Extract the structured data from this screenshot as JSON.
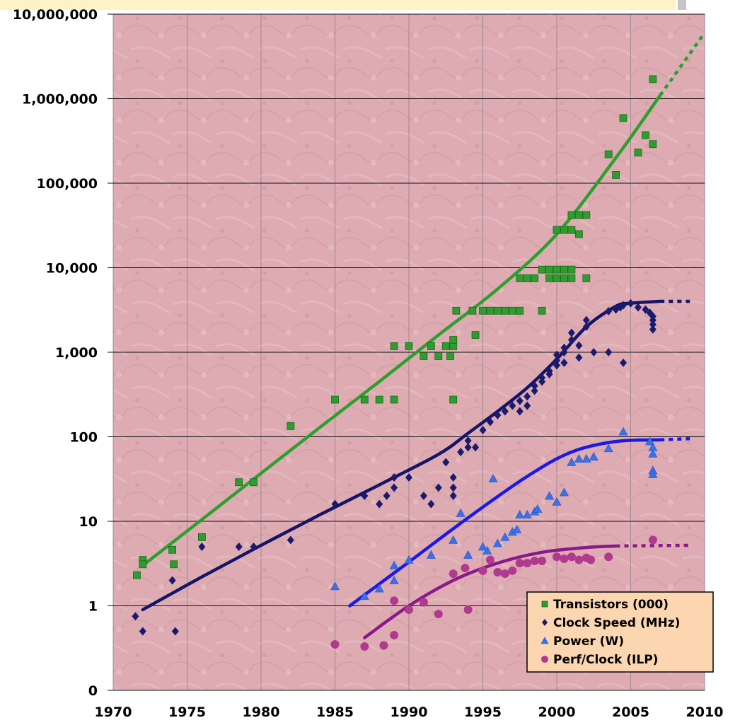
{
  "chart_data": {
    "type": "scatter",
    "title": "",
    "xlabel": "",
    "ylabel": "",
    "yscale": "log",
    "xlim": [
      1970,
      2010
    ],
    "ylim": [
      0.1,
      10000000
    ],
    "x_ticks": [
      1970,
      1975,
      1980,
      1985,
      1990,
      1995,
      2000,
      2005,
      2010
    ],
    "x_tick_labels": [
      "1970",
      "1975",
      "1980",
      "1985",
      "1990",
      "1995",
      "2000",
      "2005",
      "2010"
    ],
    "y_ticks": [
      0.1,
      1,
      10,
      100,
      1000,
      10000,
      100000,
      1000000,
      10000000
    ],
    "y_tick_labels": [
      "0",
      "1",
      "10",
      "100",
      "1,000",
      "10,000",
      "100,000",
      "1,000,000",
      "10,000,000"
    ],
    "grid": true,
    "legend_position": "bottom-right",
    "series": [
      {
        "name": "Transistors (000)",
        "marker": "square",
        "color": "#2e9c2e",
        "line_color": "#2ca02c",
        "points": [
          [
            1971.6,
            2.3
          ],
          [
            1972,
            3.5
          ],
          [
            1972,
            3.1
          ],
          [
            1974,
            4.6
          ],
          [
            1974.1,
            3.1
          ],
          [
            1976,
            6.5
          ],
          [
            1978.5,
            29
          ],
          [
            1979.5,
            29
          ],
          [
            1982,
            134
          ],
          [
            1985,
            275
          ],
          [
            1987,
            275
          ],
          [
            1988,
            275
          ],
          [
            1989,
            275
          ],
          [
            1989,
            1180
          ],
          [
            1990,
            1180
          ],
          [
            1991,
            900
          ],
          [
            1991.5,
            1180
          ],
          [
            1992,
            900
          ],
          [
            1992.5,
            1180
          ],
          [
            1993,
            1180
          ],
          [
            1993,
            1400
          ],
          [
            1992.8,
            900
          ],
          [
            1993,
            275
          ],
          [
            1993.2,
            3100
          ],
          [
            1994.3,
            3100
          ],
          [
            1994.5,
            1600
          ],
          [
            1995,
            3100
          ],
          [
            1995.5,
            3100
          ],
          [
            1996,
            3100
          ],
          [
            1996.5,
            3100
          ],
          [
            1997,
            3100
          ],
          [
            1997.5,
            3100
          ],
          [
            1997.5,
            7500
          ],
          [
            1998,
            7500
          ],
          [
            1998.5,
            7500
          ],
          [
            1999,
            3100
          ],
          [
            1999,
            9500
          ],
          [
            1999.5,
            9500
          ],
          [
            1999.5,
            7500
          ],
          [
            2000,
            9500
          ],
          [
            2000,
            7500
          ],
          [
            2000,
            28000
          ],
          [
            2000.5,
            28000
          ],
          [
            2000.5,
            9500
          ],
          [
            2000.5,
            7500
          ],
          [
            2001,
            9500
          ],
          [
            2001,
            7500
          ],
          [
            2001,
            28000
          ],
          [
            2001,
            42000
          ],
          [
            2001.5,
            42000
          ],
          [
            2001.5,
            25000
          ],
          [
            2002,
            42000
          ],
          [
            2002,
            7500
          ],
          [
            2003.5,
            220000
          ],
          [
            2004,
            125000
          ],
          [
            2004.5,
            590000
          ],
          [
            2005.5,
            230000
          ],
          [
            2006,
            370000
          ],
          [
            2006.5,
            290000
          ],
          [
            2006.5,
            1700000
          ]
        ],
        "trend": [
          [
            1972,
            3
          ],
          [
            1976,
            10.5
          ],
          [
            1980,
            37
          ],
          [
            1984,
            130
          ],
          [
            1988,
            450
          ],
          [
            1992,
            1600
          ],
          [
            1996,
            5600
          ],
          [
            2000,
            25000
          ],
          [
            2004,
            200000
          ],
          [
            2007,
            1100000
          ]
        ],
        "trend_projection": [
          [
            2007,
            1100000
          ],
          [
            2010,
            6000000
          ]
        ]
      },
      {
        "name": "Clock Speed (MHz)",
        "marker": "diamond",
        "color": "#1a1a6e",
        "line_color": "#141468",
        "points": [
          [
            1971.5,
            0.75
          ],
          [
            1972,
            0.5
          ],
          [
            1974,
            2
          ],
          [
            1974.2,
            0.5
          ],
          [
            1976,
            5
          ],
          [
            1978.5,
            5
          ],
          [
            1979.5,
            5
          ],
          [
            1982,
            6
          ],
          [
            1985,
            16
          ],
          [
            1987,
            20
          ],
          [
            1988,
            16
          ],
          [
            1988.5,
            20
          ],
          [
            1989,
            25
          ],
          [
            1989,
            33
          ],
          [
            1990,
            33
          ],
          [
            1991,
            20
          ],
          [
            1991.5,
            16
          ],
          [
            1992,
            25
          ],
          [
            1992.5,
            50
          ],
          [
            1993,
            33
          ],
          [
            1993,
            25
          ],
          [
            1993,
            20
          ],
          [
            1993.5,
            66
          ],
          [
            1994,
            75
          ],
          [
            1994,
            90
          ],
          [
            1994.5,
            75
          ],
          [
            1995,
            120
          ],
          [
            1995.5,
            150
          ],
          [
            1996,
            180
          ],
          [
            1996.5,
            200
          ],
          [
            1997,
            233
          ],
          [
            1997.5,
            266
          ],
          [
            1997.5,
            200
          ],
          [
            1998,
            300
          ],
          [
            1998,
            233
          ],
          [
            1998.5,
            350
          ],
          [
            1998.5,
            400
          ],
          [
            1999,
            450
          ],
          [
            1999,
            500
          ],
          [
            1999.5,
            550
          ],
          [
            1999.5,
            600
          ],
          [
            2000,
            700
          ],
          [
            2000,
            800
          ],
          [
            2000,
            933
          ],
          [
            2000.5,
            1000
          ],
          [
            2000.5,
            1130
          ],
          [
            2000.5,
            750
          ],
          [
            2001,
            1400
          ],
          [
            2001,
            1700
          ],
          [
            2001.5,
            1200
          ],
          [
            2001.5,
            866
          ],
          [
            2002,
            2000
          ],
          [
            2002,
            2400
          ],
          [
            2002.5,
            1000
          ],
          [
            2003.5,
            3060
          ],
          [
            2003.5,
            1000
          ],
          [
            2004,
            3200
          ],
          [
            2004.3,
            3400
          ],
          [
            2004.5,
            3600
          ],
          [
            2004.5,
            750
          ],
          [
            2005,
            3800
          ],
          [
            2005.5,
            3400
          ],
          [
            2006,
            3200
          ],
          [
            2006.3,
            2930
          ],
          [
            2006.5,
            2660
          ],
          [
            2006.5,
            2400
          ],
          [
            2006.5,
            2130
          ],
          [
            2006.5,
            1860
          ]
        ],
        "trend": [
          [
            1972,
            0.9
          ],
          [
            1976,
            2.2
          ],
          [
            1980,
            5.2
          ],
          [
            1984,
            12
          ],
          [
            1988,
            27
          ],
          [
            1992,
            62
          ],
          [
            1994,
            110
          ],
          [
            1996,
            200
          ],
          [
            1998,
            380
          ],
          [
            2000,
            830
          ],
          [
            2002,
            2000
          ],
          [
            2004,
            3500
          ],
          [
            2005,
            3800
          ],
          [
            2007,
            4000
          ]
        ],
        "trend_projection": [
          [
            2007,
            4000
          ],
          [
            2009,
            4000
          ]
        ]
      },
      {
        "name": "Power (W)",
        "marker": "triangle",
        "color": "#3a70e8",
        "line_color": "#1a1ae6",
        "points": [
          [
            1985,
            1.7
          ],
          [
            1987,
            1.3
          ],
          [
            1988,
            1.6
          ],
          [
            1989,
            2
          ],
          [
            1989,
            3
          ],
          [
            1990,
            3.5
          ],
          [
            1991.5,
            4
          ],
          [
            1993,
            6
          ],
          [
            1993.5,
            12.5
          ],
          [
            1994,
            4
          ],
          [
            1995,
            5
          ],
          [
            1995.3,
            4.5
          ],
          [
            1995.7,
            32
          ],
          [
            1996,
            5.5
          ],
          [
            1996.5,
            6.5
          ],
          [
            1997,
            7.5
          ],
          [
            1997.3,
            8
          ],
          [
            1997.5,
            12
          ],
          [
            1998,
            12
          ],
          [
            1998.5,
            13
          ],
          [
            1998.7,
            14
          ],
          [
            1999.5,
            20
          ],
          [
            2000,
            17
          ],
          [
            2000.5,
            22
          ],
          [
            2001,
            50
          ],
          [
            2001.5,
            55
          ],
          [
            2002,
            55
          ],
          [
            2002.5,
            58
          ],
          [
            2003.5,
            73
          ],
          [
            2004.5,
            115
          ],
          [
            2006.3,
            88
          ],
          [
            2006.5,
            75
          ],
          [
            2006.5,
            63
          ],
          [
            2006.5,
            40
          ],
          [
            2006.5,
            36
          ]
        ],
        "trend": [
          [
            1986,
            1
          ],
          [
            1990,
            3.3
          ],
          [
            1994,
            11
          ],
          [
            1998,
            34
          ],
          [
            2001,
            66
          ],
          [
            2004,
            88
          ],
          [
            2007,
            92
          ]
        ],
        "trend_projection": [
          [
            2007,
            92
          ],
          [
            2009,
            95
          ]
        ]
      },
      {
        "name": "Perf/Clock (ILP)",
        "marker": "circle",
        "color": "#b03a8e",
        "line_color": "#8a1a8c",
        "points": [
          [
            1985,
            0.35
          ],
          [
            1987,
            0.33
          ],
          [
            1988.3,
            0.34
          ],
          [
            1989,
            0.45
          ],
          [
            1989,
            1.15
          ],
          [
            1990,
            0.9
          ],
          [
            1991,
            1.1
          ],
          [
            1992,
            0.8
          ],
          [
            1993,
            2.4
          ],
          [
            1993.8,
            2.8
          ],
          [
            1994,
            0.9
          ],
          [
            1995,
            2.6
          ],
          [
            1995.5,
            3.5
          ],
          [
            1996,
            2.5
          ],
          [
            1996.5,
            2.4
          ],
          [
            1997,
            2.6
          ],
          [
            1997.5,
            3.2
          ],
          [
            1998,
            3.2
          ],
          [
            1998.5,
            3.4
          ],
          [
            1999,
            3.4
          ],
          [
            2000,
            3.8
          ],
          [
            2000.5,
            3.6
          ],
          [
            2001,
            3.8
          ],
          [
            2001.5,
            3.5
          ],
          [
            2002,
            3.7
          ],
          [
            2002.3,
            3.5
          ],
          [
            2003.5,
            3.8
          ],
          [
            2006.5,
            6
          ]
        ],
        "trend": [
          [
            1987,
            0.42
          ],
          [
            1990,
            1
          ],
          [
            1993,
            2
          ],
          [
            1996,
            3.2
          ],
          [
            1999,
            4.3
          ],
          [
            2002,
            4.9
          ],
          [
            2004,
            5.1
          ]
        ],
        "trend_projection": [
          [
            2004,
            5.1
          ],
          [
            2009,
            5.2
          ]
        ]
      }
    ]
  }
}
